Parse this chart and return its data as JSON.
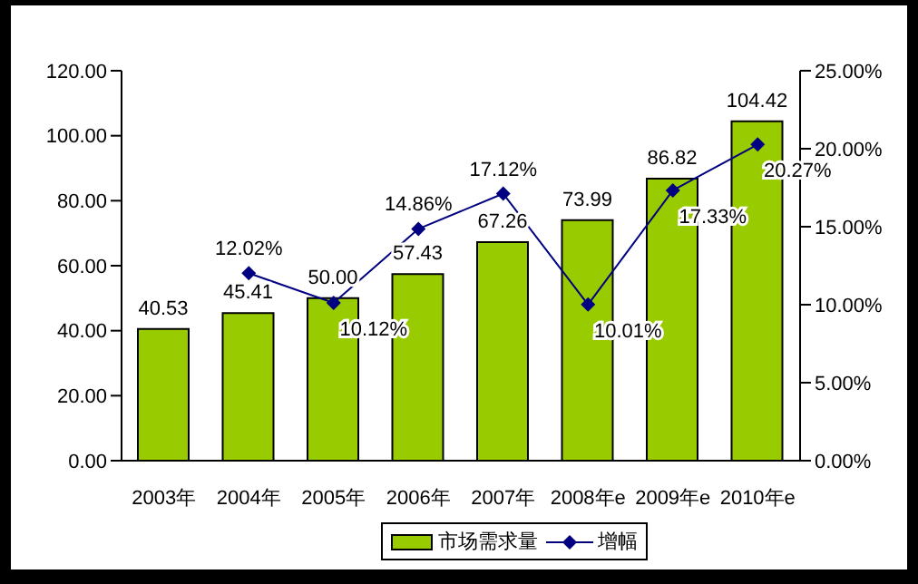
{
  "chart_data": {
    "type": "bar",
    "categories": [
      "2003年",
      "2004年",
      "2005年",
      "2006年",
      "2007年",
      "2008年e",
      "2009年e",
      "2010年e"
    ],
    "series": [
      {
        "name": "市场需求量",
        "color": "#99cc00",
        "values": [
          40.53,
          45.41,
          50.0,
          57.43,
          67.26,
          73.99,
          86.82,
          104.42
        ],
        "value_labels": [
          "40.53",
          "45.41",
          "50.00",
          "57.43",
          "67.26",
          "73.99",
          "86.82",
          "104.42"
        ]
      },
      {
        "name": "增幅",
        "type": "line",
        "axis": "y2",
        "color": "#000080",
        "marker": "diamond",
        "values": [
          null,
          12.02,
          10.12,
          14.86,
          17.12,
          10.01,
          17.33,
          20.27
        ],
        "value_labels": [
          null,
          "12.02%",
          "10.12%",
          "14.86%",
          "17.12%",
          "10.01%",
          "17.33%",
          "20.27%"
        ]
      }
    ],
    "ylim": [
      0,
      120
    ],
    "yticks": [
      {
        "value": 0,
        "label": "0.00"
      },
      {
        "value": 20,
        "label": "20.00"
      },
      {
        "value": 40,
        "label": "40.00"
      },
      {
        "value": 60,
        "label": "60.00"
      },
      {
        "value": 80,
        "label": "80.00"
      },
      {
        "value": 100,
        "label": "100.00"
      },
      {
        "value": 120,
        "label": "120.00"
      }
    ],
    "y2lim": [
      0,
      25
    ],
    "y2ticks": [
      {
        "value": 0,
        "label": "0.00%"
      },
      {
        "value": 5,
        "label": "5.00%"
      },
      {
        "value": 10,
        "label": "10.00%"
      },
      {
        "value": 15,
        "label": "15.00%"
      },
      {
        "value": 20,
        "label": "20.00%"
      },
      {
        "value": 25,
        "label": "25.00%"
      }
    ],
    "grid": false,
    "legend": "bottom"
  }
}
